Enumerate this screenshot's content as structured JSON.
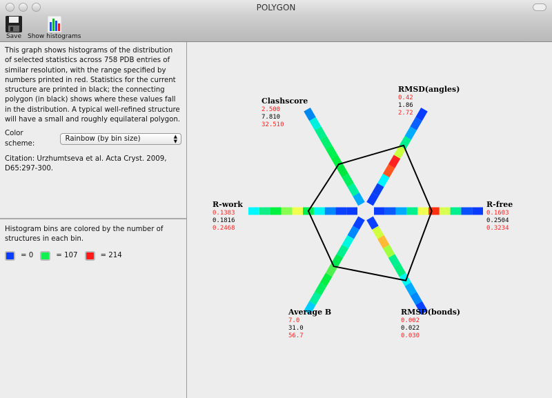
{
  "window": {
    "title": "POLYGON"
  },
  "toolbar": {
    "save_label": "Save",
    "histograms_label": "Show histograms",
    "save_icon": "floppy-disk-icon",
    "histograms_icon": "bar-chart-icon"
  },
  "info": {
    "description": "This graph shows histograms of the distribution of selected statistics across 758 PDB entries of similar resolution, with the range specified by numbers printed in red.  Statistics for the current structure are printed in black; the connecting polygon (in black) shows where these values fall in the distribution. A typical well-refined structure will have a small and roughly equilateral polygon.",
    "color_scheme_label": "Color scheme:",
    "color_scheme_value": "Rainbow (by bin size)",
    "citation": "Citation: Urzhumtseva et al. Acta Cryst. 2009, D65:297-300."
  },
  "legend": {
    "text": "Histogram bins are colored by the number of structures in each bin.",
    "items": [
      {
        "color": "#0a3cff",
        "label": "= 0"
      },
      {
        "color": "#10f050",
        "label": "= 107"
      },
      {
        "color": "#ff1a1a",
        "label": "= 214"
      }
    ]
  },
  "colors": {
    "range": "#ff2020",
    "current": "#000000"
  },
  "axes": [
    {
      "name": "R-free",
      "min": "0.1603",
      "current": "0.2504",
      "max": "0.3234",
      "bins": [
        "#0a3cff",
        "#0a5aff",
        "#00aaff",
        "#00f090",
        "#f0ff50",
        "#ff3010",
        "#d8ff50",
        "#00f090",
        "#0a50ff",
        "#0a3cff"
      ]
    },
    {
      "name": "RMSD(angles)",
      "min": "0.42",
      "current": "1.86",
      "max": "2.72",
      "bins": [
        "#0a3cff",
        "#0a40f0",
        "#00f4ff",
        "#ff5520",
        "#ff2020",
        "#c8ff40",
        "#00f090",
        "#00aaff",
        "#0a60ff",
        "#0a3cff"
      ]
    },
    {
      "name": "Clashscore",
      "min": "2.500",
      "current": "7.810",
      "max": "32.510",
      "bins": [
        "#00aaff",
        "#00f0a0",
        "#00f060",
        "#00e840",
        "#00f040",
        "#00f050",
        "#00f070",
        "#00f090",
        "#00f0e0",
        "#0088f0"
      ]
    },
    {
      "name": "R-work",
      "min": "0.1383",
      "current": "0.1816",
      "max": "0.2468",
      "bins": [
        "#0a3cff",
        "#0a40ff",
        "#0088ff",
        "#00f8f0",
        "#00f050",
        "#f0ff50",
        "#88ff50",
        "#00f040",
        "#10ee88",
        "#00f8ff"
      ]
    },
    {
      "name": "Average B",
      "min": "7.0",
      "current": "31.0",
      "max": "56.7",
      "bins": [
        "#0a40ff",
        "#0088ff",
        "#00f8e0",
        "#00f090",
        "#00e850",
        "#50f050",
        "#00f040",
        "#00f060",
        "#00f0a0",
        "#00ccff"
      ]
    },
    {
      "name": "RMSD(bonds)",
      "min": "0.002",
      "current": "0.022",
      "max": "0.030",
      "bins": [
        "#0a40ff",
        "#d0ff40",
        "#ffbb33",
        "#a0ff40",
        "#00f090",
        "#00f080",
        "#00f8f0",
        "#00aaff",
        "#0088ff",
        "#0a40ff"
      ]
    }
  ],
  "polygon_positions": [
    0.53,
    0.62,
    0.42,
    0.45,
    0.51,
    0.66
  ]
}
